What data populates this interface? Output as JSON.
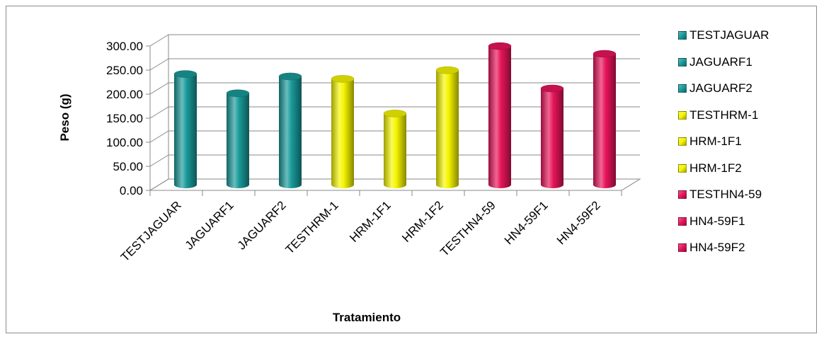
{
  "chart_data": {
    "type": "bar",
    "style": "3d-cylinder",
    "title": "",
    "xlabel": "Tratamiento",
    "ylabel": "Peso (g)",
    "ylim": [
      0,
      300
    ],
    "yticks": [
      "0.00",
      "50.00",
      "100.00",
      "150.00",
      "200.00",
      "250.00",
      "300.00"
    ],
    "grid": true,
    "legend_position": "right",
    "categories": [
      "TESTJAGUAR",
      "JAGUARF1",
      "JAGUARF2",
      "TESTHRM-1",
      "HRM-1F1",
      "HRM-1F2",
      "TESTHN4-59",
      "HN4-59F1",
      "HN4-59F2"
    ],
    "values": [
      230,
      190,
      225,
      220,
      148,
      238,
      288,
      200,
      272
    ],
    "bar_colors": [
      "#1a9a9a",
      "#1a9a9a",
      "#1a9a9a",
      "#f5f500",
      "#f5f500",
      "#f5f500",
      "#e8145a",
      "#e8145a",
      "#e8145a"
    ],
    "legend": [
      "TESTJAGUAR",
      "JAGUARF1",
      "JAGUARF2",
      "TESTHRM-1",
      "HRM-1F1",
      "HRM-1F2",
      "TESTHN4-59",
      "HN4-59F1",
      "HN4-59F2"
    ]
  }
}
